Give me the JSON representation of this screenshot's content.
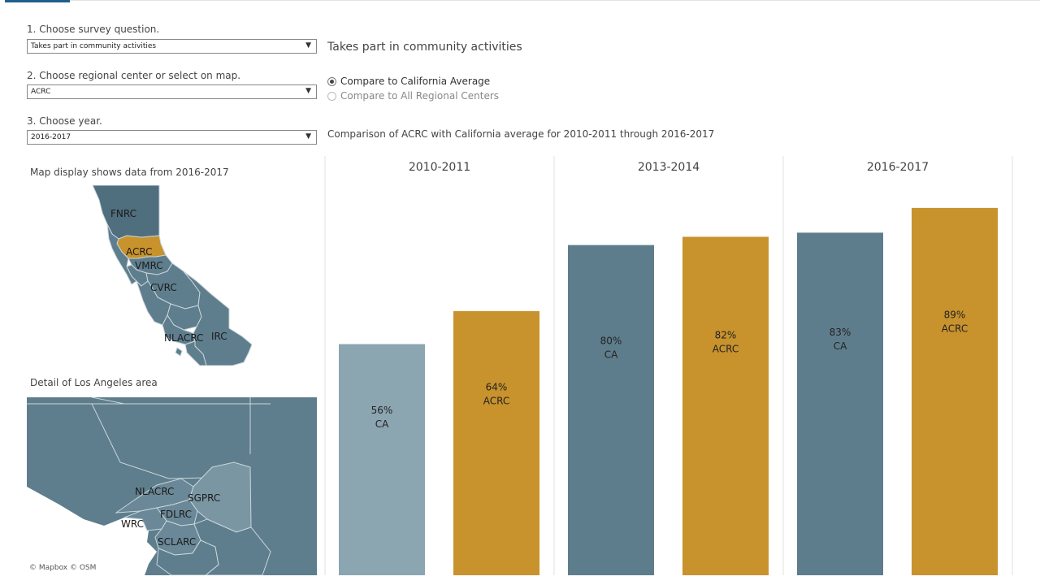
{
  "controls": {
    "q_label": "1. Choose survey question.",
    "q_value": "Takes part in community activities",
    "rc_label": "2. Choose regional center or select on map.",
    "rc_value": "ACRC",
    "yr_label": "3. Choose year.",
    "yr_value": "2016-2017"
  },
  "question_title": "Takes part in community activities",
  "compare": {
    "opt1": "Compare to California Average",
    "opt2": "Compare to All Regional Centers"
  },
  "subtitle": "Comparison of ACRC with California average for 2010-2011 through 2016-2017",
  "map": {
    "title": "Map display shows data from 2016-2017",
    "detail_title": "Detail of Los Angeles area",
    "attribution": "© Mapbox  © OSM",
    "regions": [
      "FNRC",
      "ACRC",
      "VMRC",
      "CVRC",
      "NLACRC",
      "IRC"
    ],
    "la_regions": [
      "NLACRC",
      "SGPRC",
      "FDLRC",
      "WRC",
      "SCLARC"
    ],
    "colors": {
      "land": "#5f7e8d",
      "highlight": "#c8922c",
      "border": "#c9d6dc",
      "la_light": "#7a96a3"
    }
  },
  "chart_data": {
    "type": "bar",
    "categories": [
      "2010-2011",
      "2013-2014",
      "2016-2017"
    ],
    "series": [
      {
        "name": "CA",
        "values": [
          56,
          80,
          83
        ]
      },
      {
        "name": "ACRC",
        "values": [
          64,
          82,
          89
        ]
      }
    ],
    "value_labels": [
      [
        "56%",
        "80%",
        "83%"
      ],
      [
        "64%",
        "82%",
        "89%"
      ]
    ],
    "ylim": [
      0,
      100
    ],
    "colors": {
      "ca": "#5e7d8c",
      "ca_faded": "#8ba5b1",
      "acrc": "#c8922c"
    }
  }
}
